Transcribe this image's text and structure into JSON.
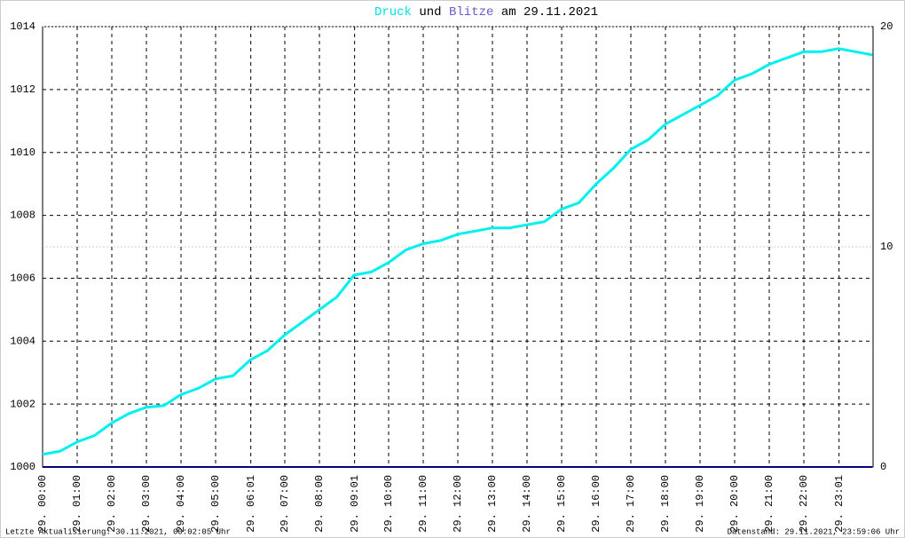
{
  "chart_data": {
    "type": "line",
    "title": [
      "Druck",
      "und",
      "Blitze",
      "am 29.11.2021"
    ],
    "x": [
      0,
      0.5,
      1,
      1.5,
      2,
      2.5,
      3,
      3.5,
      4,
      4.5,
      5,
      5.5,
      6,
      6.5,
      7,
      7.5,
      8,
      8.5,
      9,
      9.5,
      10,
      10.5,
      11,
      11.5,
      12,
      12.5,
      13,
      13.5,
      14,
      14.5,
      15,
      15.5,
      16,
      16.5,
      17,
      17.5,
      18,
      18.5,
      19,
      19.5,
      20,
      20.5,
      21,
      21.5,
      22,
      22.5,
      23,
      23.5,
      23.98
    ],
    "series": [
      {
        "name": "Druck",
        "color": "#00f0f0",
        "values": [
          1000.4,
          1000.5,
          1000.8,
          1001.0,
          1001.4,
          1001.7,
          1001.9,
          1001.95,
          1002.3,
          1002.5,
          1002.8,
          1002.9,
          1003.4,
          1003.7,
          1004.2,
          1004.6,
          1005.0,
          1005.4,
          1006.1,
          1006.2,
          1006.5,
          1006.9,
          1007.1,
          1007.2,
          1007.4,
          1007.5,
          1007.6,
          1007.6,
          1007.7,
          1007.8,
          1008.2,
          1008.4,
          1009.0,
          1009.5,
          1010.1,
          1010.4,
          1010.9,
          1011.2,
          1011.5,
          1011.8,
          1012.3,
          1012.5,
          1012.8,
          1013.0,
          1013.2,
          1013.2,
          1013.3,
          1013.2,
          1013.1
        ]
      },
      {
        "name": "Blitze",
        "color": "#000080",
        "axis": "y2",
        "values": [
          0,
          0,
          0,
          0,
          0,
          0,
          0,
          0,
          0,
          0,
          0,
          0,
          0,
          0,
          0,
          0,
          0,
          0,
          0,
          0,
          0,
          0,
          0,
          0,
          0,
          0,
          0,
          0,
          0,
          0,
          0,
          0,
          0,
          0,
          0,
          0,
          0,
          0,
          0,
          0,
          0,
          0,
          0,
          0,
          0,
          0,
          0,
          0,
          0
        ]
      }
    ],
    "xlim": [
      0,
      24
    ],
    "xticks": [
      {
        "value": 0,
        "label": "29. 00:00"
      },
      {
        "value": 1,
        "label": "29. 01:00"
      },
      {
        "value": 2,
        "label": "29. 02:00"
      },
      {
        "value": 3,
        "label": "29. 03:00"
      },
      {
        "value": 4,
        "label": "29. 04:00"
      },
      {
        "value": 5,
        "label": "29. 05:00"
      },
      {
        "value": 6.0167,
        "label": "29. 06:01"
      },
      {
        "value": 7,
        "label": "29. 07:00"
      },
      {
        "value": 8,
        "label": "29. 08:00"
      },
      {
        "value": 9.0167,
        "label": "29. 09:01"
      },
      {
        "value": 10,
        "label": "29. 10:00"
      },
      {
        "value": 11,
        "label": "29. 11:00"
      },
      {
        "value": 12,
        "label": "29. 12:00"
      },
      {
        "value": 13,
        "label": "29. 13:00"
      },
      {
        "value": 14,
        "label": "29. 14:00"
      },
      {
        "value": 15,
        "label": "29. 15:00"
      },
      {
        "value": 16,
        "label": "29. 16:00"
      },
      {
        "value": 17,
        "label": "29. 17:00"
      },
      {
        "value": 18,
        "label": "29. 18:00"
      },
      {
        "value": 19,
        "label": "29. 19:00"
      },
      {
        "value": 20,
        "label": "29. 20:00"
      },
      {
        "value": 21,
        "label": "29. 21:00"
      },
      {
        "value": 22,
        "label": "29. 22:00"
      },
      {
        "value": 23.0167,
        "label": "29. 23:01"
      }
    ],
    "ylim": [
      1000,
      1014
    ],
    "yticks": [
      1000,
      1002,
      1004,
      1006,
      1008,
      1010,
      1012,
      1014
    ],
    "y2lim": [
      0,
      20
    ],
    "y2ticks": [
      0,
      10,
      20
    ],
    "grid": true,
    "footer_left": "Letzte Aktualisierung: 30.11.2021, 00:02:05 Uhr",
    "footer_right": "Datenstand: 29.11.2021, 23:59:06 Uhr"
  }
}
